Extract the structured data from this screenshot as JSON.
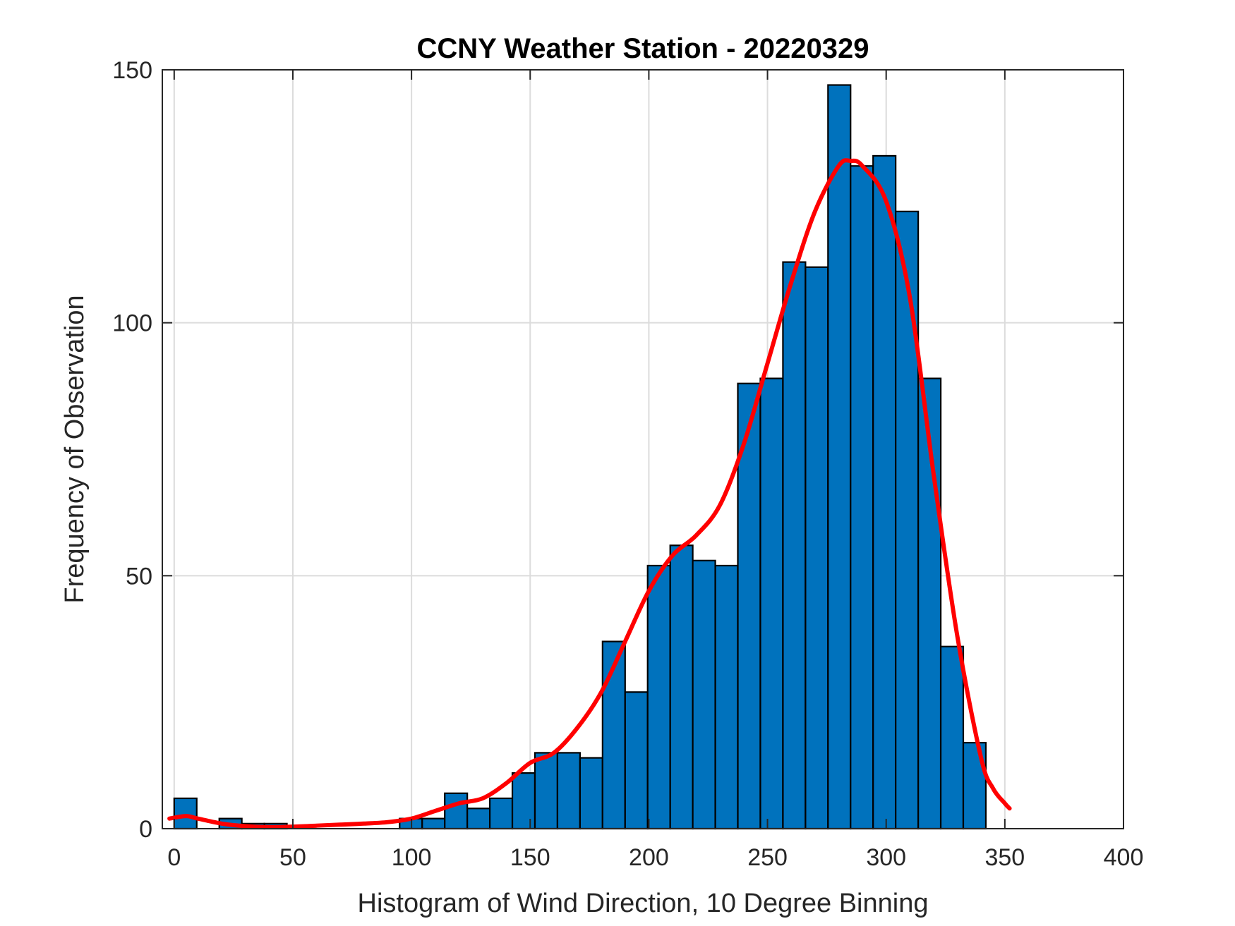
{
  "chart_data": {
    "type": "bar",
    "title": "CCNY Weather Station - 20220329",
    "xlabel": "Histogram of Wind Direction, 10 Degree Binning",
    "ylabel": "Frequency of Observation",
    "xlim": [
      -5,
      400
    ],
    "ylim": [
      0,
      150
    ],
    "xticks": [
      0,
      50,
      100,
      150,
      200,
      250,
      300,
      350,
      400
    ],
    "yticks": [
      0,
      50,
      100,
      150
    ],
    "grid": true,
    "bin_width": 9.5,
    "bar_color": "#0072BD",
    "bar_edge_color": "#000000",
    "curve_color": "#FF0000",
    "bins": [
      {
        "x": 0,
        "value": 6
      },
      {
        "x": 9.5,
        "value": 0
      },
      {
        "x": 19,
        "value": 2
      },
      {
        "x": 28.5,
        "value": 1
      },
      {
        "x": 38,
        "value": 1
      },
      {
        "x": 47.5,
        "value": 0
      },
      {
        "x": 57,
        "value": 0
      },
      {
        "x": 66.5,
        "value": 0
      },
      {
        "x": 76,
        "value": 0
      },
      {
        "x": 85.5,
        "value": 0
      },
      {
        "x": 95,
        "value": 2
      },
      {
        "x": 104.5,
        "value": 2
      },
      {
        "x": 114,
        "value": 7
      },
      {
        "x": 123.5,
        "value": 4
      },
      {
        "x": 133,
        "value": 6
      },
      {
        "x": 142.5,
        "value": 11
      },
      {
        "x": 152,
        "value": 15
      },
      {
        "x": 161.5,
        "value": 15
      },
      {
        "x": 171,
        "value": 14
      },
      {
        "x": 180.5,
        "value": 37
      },
      {
        "x": 190,
        "value": 27
      },
      {
        "x": 199.5,
        "value": 52
      },
      {
        "x": 209,
        "value": 56
      },
      {
        "x": 218.5,
        "value": 53
      },
      {
        "x": 228,
        "value": 52
      },
      {
        "x": 237.5,
        "value": 88
      },
      {
        "x": 247,
        "value": 89
      },
      {
        "x": 256.5,
        "value": 112
      },
      {
        "x": 266,
        "value": 111
      },
      {
        "x": 275.5,
        "value": 147
      },
      {
        "x": 285,
        "value": 131
      },
      {
        "x": 294.5,
        "value": 133
      },
      {
        "x": 304,
        "value": 122
      },
      {
        "x": 313.5,
        "value": 89
      },
      {
        "x": 323,
        "value": 36
      },
      {
        "x": 332.5,
        "value": 17
      }
    ],
    "fit_curve": {
      "x": [
        -2,
        5,
        10,
        20,
        30,
        40,
        50,
        60,
        70,
        80,
        90,
        100,
        110,
        120,
        130,
        140,
        150,
        160,
        170,
        180,
        190,
        200,
        210,
        220,
        230,
        240,
        250,
        260,
        270,
        280,
        285,
        290,
        300,
        310,
        320,
        330,
        340,
        345,
        350,
        352
      ],
      "y": [
        2,
        2.5,
        2,
        1,
        0.5,
        0.3,
        0.4,
        0.6,
        0.8,
        1,
        1.3,
        2,
        3.5,
        5,
        6,
        9,
        13,
        15,
        20,
        27,
        37,
        47,
        54,
        58,
        64,
        76,
        92,
        108,
        122,
        131,
        132,
        131,
        124,
        105,
        70,
        38,
        14,
        8,
        5,
        4
      ]
    }
  }
}
